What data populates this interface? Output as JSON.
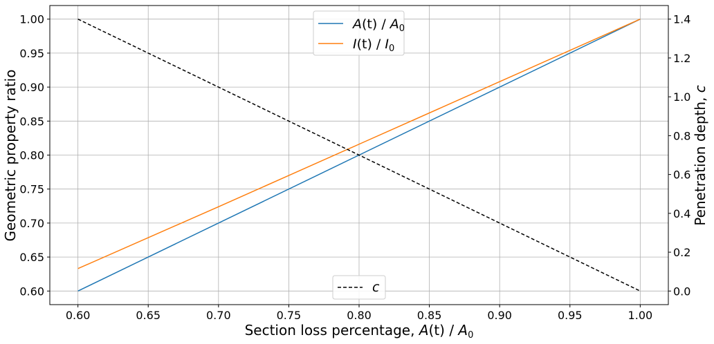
{
  "chart_data": {
    "type": "line",
    "xlabel": {
      "prefix": "Section loss percentage, ",
      "var": "A",
      "arg": "(t)",
      "slash": " / ",
      "var2": "A",
      "sub": "0"
    },
    "ylabel_left": "Geometric property ratio",
    "ylabel_right": {
      "prefix": "Penetration depth, ",
      "var": "c"
    },
    "xlim": [
      0.58,
      1.02
    ],
    "ylim_left": [
      0.58,
      1.02
    ],
    "ylim_right": [
      -0.07,
      1.47
    ],
    "x_ticks": [
      "0.60",
      "0.65",
      "0.70",
      "0.75",
      "0.80",
      "0.85",
      "0.90",
      "0.95",
      "1.00"
    ],
    "y_left_ticks": [
      "0.60",
      "0.65",
      "0.70",
      "0.75",
      "0.80",
      "0.85",
      "0.90",
      "0.95",
      "1.00"
    ],
    "y_right_ticks": [
      "0.0",
      "0.2",
      "0.4",
      "0.6",
      "0.8",
      "1.0",
      "1.2",
      "1.4"
    ],
    "grid": true,
    "series": [
      {
        "name": {
          "var": "A",
          "arg": "(t)",
          "slash": " / ",
          "var2": "A",
          "sub": "0"
        },
        "axis": "left",
        "color": "#1f77b4",
        "dash": "solid",
        "x": [
          0.6,
          1.0
        ],
        "y": [
          0.6,
          1.0
        ]
      },
      {
        "name": {
          "var": "I",
          "arg": "(t)",
          "slash": " / ",
          "var2": "I",
          "sub": "0"
        },
        "axis": "left",
        "color": "#ff7f0e",
        "dash": "solid",
        "x": [
          0.6,
          0.7,
          0.8,
          0.9,
          1.0
        ],
        "y": [
          0.633,
          0.724,
          0.816,
          0.908,
          1.0
        ]
      },
      {
        "name": {
          "var": "c"
        },
        "axis": "right",
        "color": "#000000",
        "dash": "dashed",
        "x": [
          0.6,
          1.0
        ],
        "y": [
          1.4,
          0.0
        ]
      }
    ],
    "legend_left_axis": "top-center",
    "legend_right_axis": "bottom-center"
  }
}
